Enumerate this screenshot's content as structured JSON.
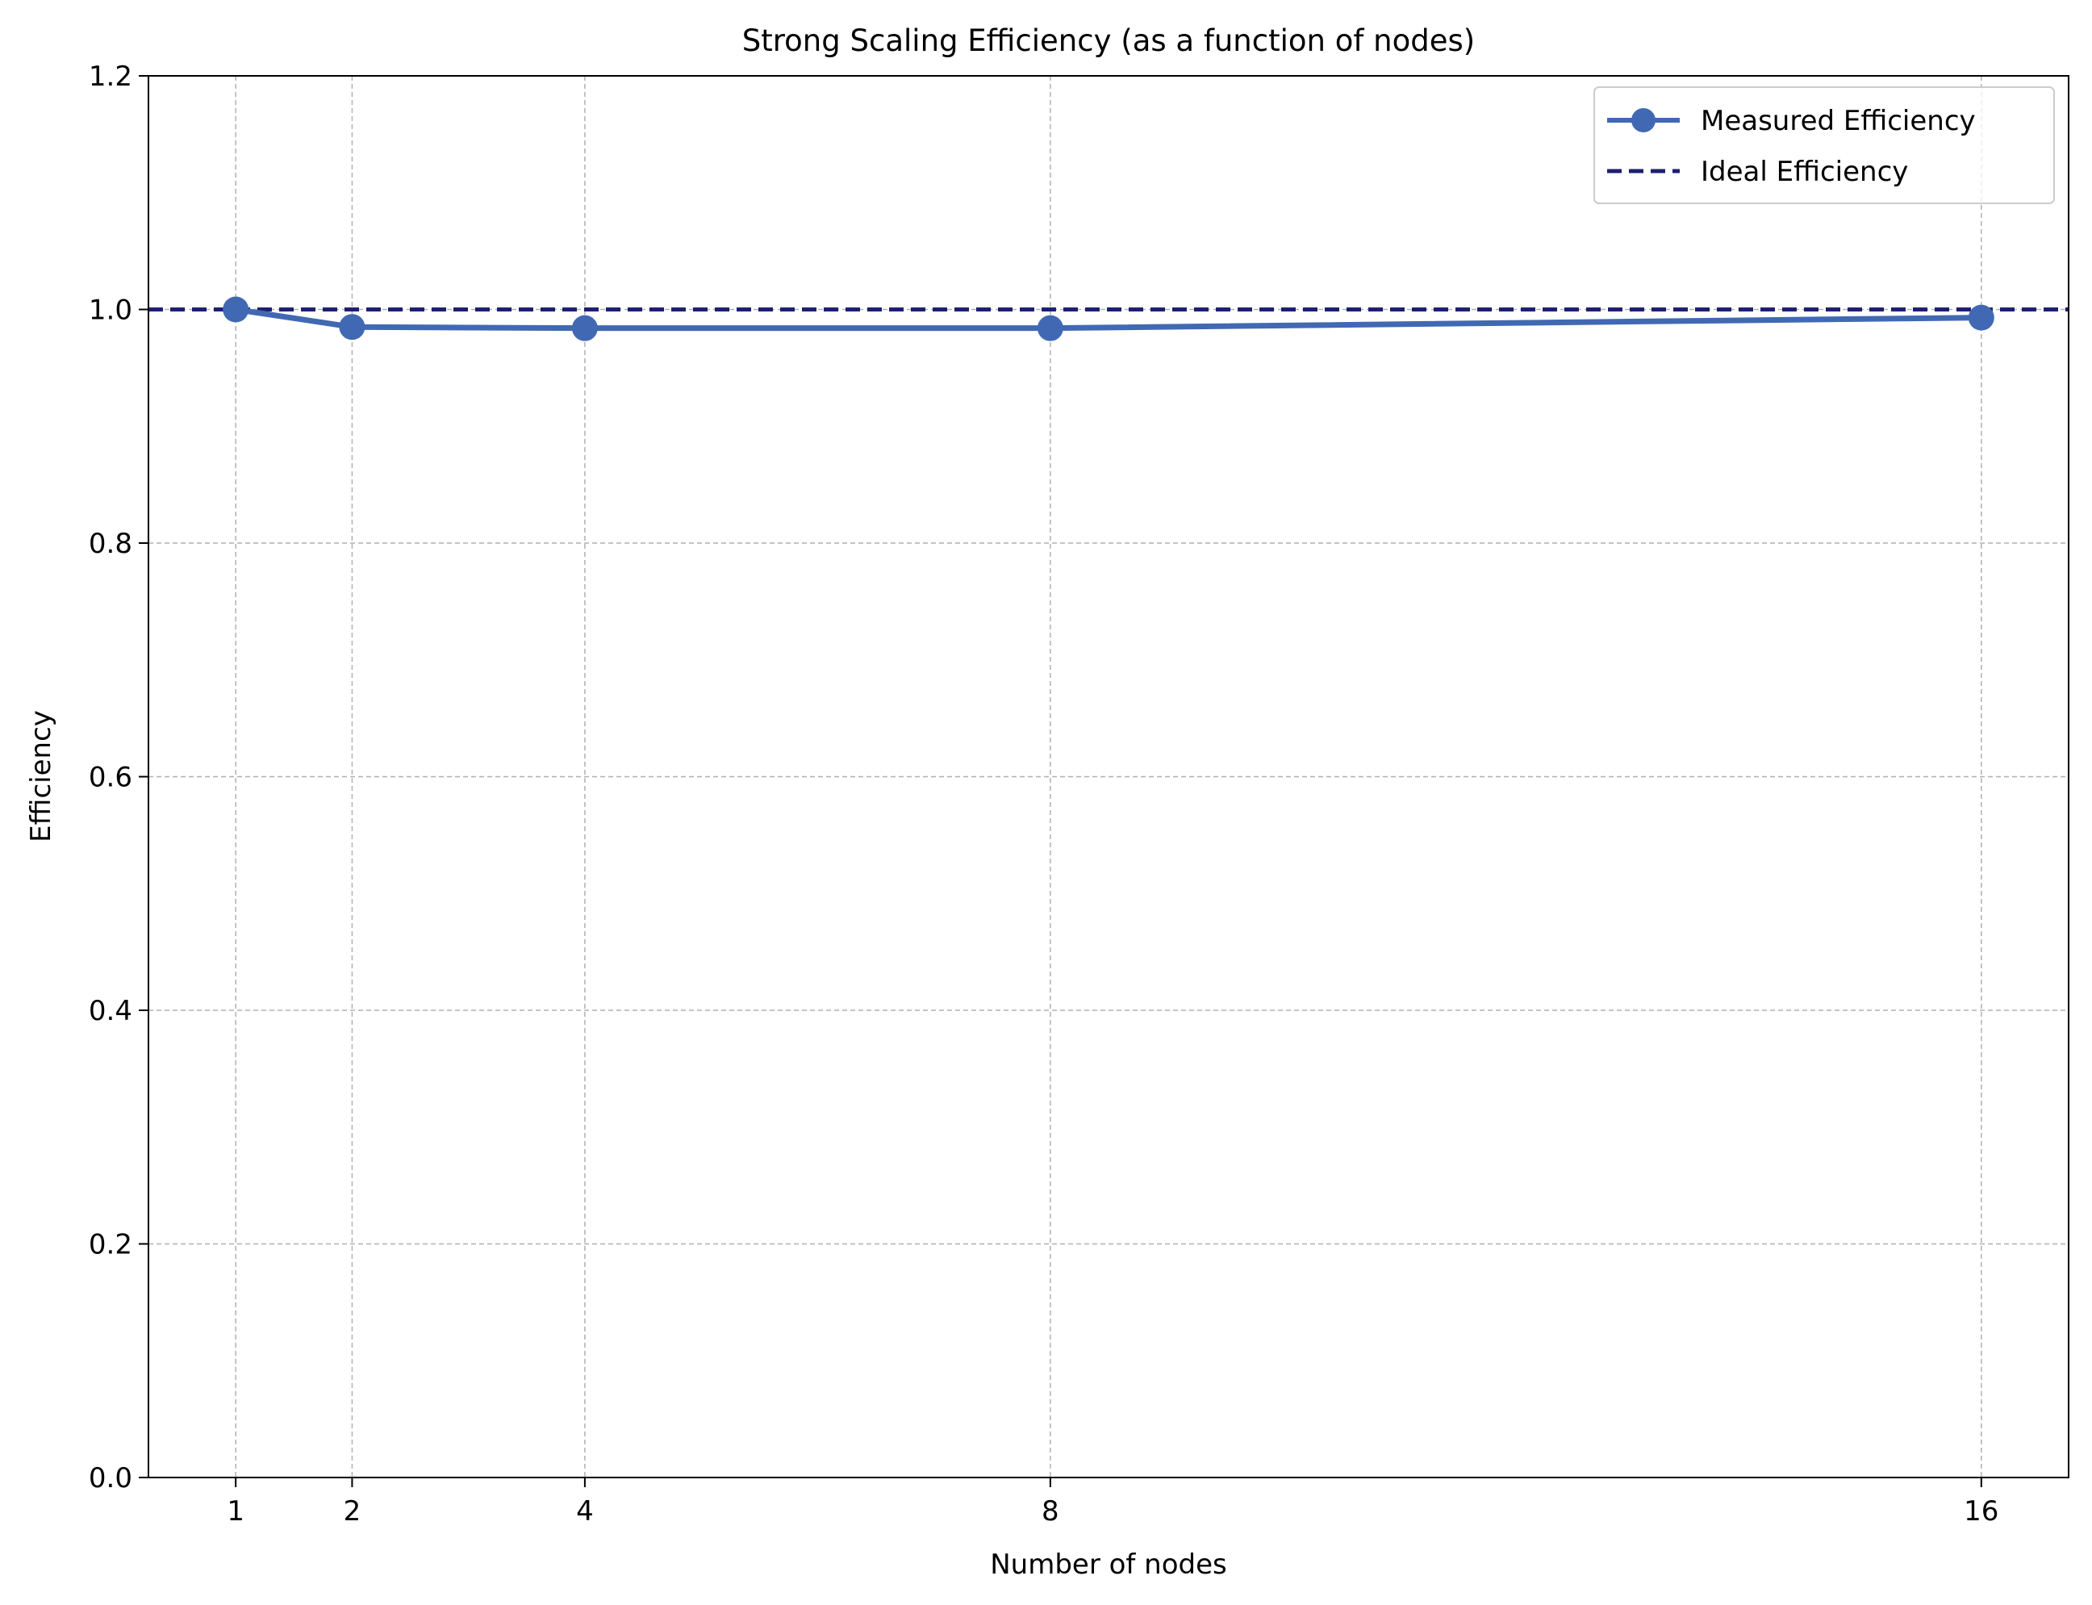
{
  "chart_data": {
    "type": "line",
    "title": "Strong Scaling Efficiency (as a function of nodes)",
    "xlabel": "Number of nodes",
    "ylabel": "Efficiency",
    "x": [
      1,
      2,
      4,
      8,
      16
    ],
    "xlim": [
      0.25,
      16.75
    ],
    "ylim": [
      0,
      1.2
    ],
    "xticks": [
      "1",
      "2",
      "4",
      "8",
      "16"
    ],
    "yticks": [
      "0.0",
      "0.2",
      "0.4",
      "0.6",
      "0.8",
      "1.0",
      "1.2"
    ],
    "grid": true,
    "legend_position": "top-right",
    "series": [
      {
        "name": "Measured Efficiency",
        "values": [
          1.0,
          0.985,
          0.984,
          0.984,
          0.993
        ],
        "color": "#4169b3",
        "style": "solid",
        "marker": "circle"
      },
      {
        "name": "Ideal Efficiency",
        "value": 1.0,
        "color": "#1f1f70",
        "style": "dashed"
      }
    ]
  }
}
